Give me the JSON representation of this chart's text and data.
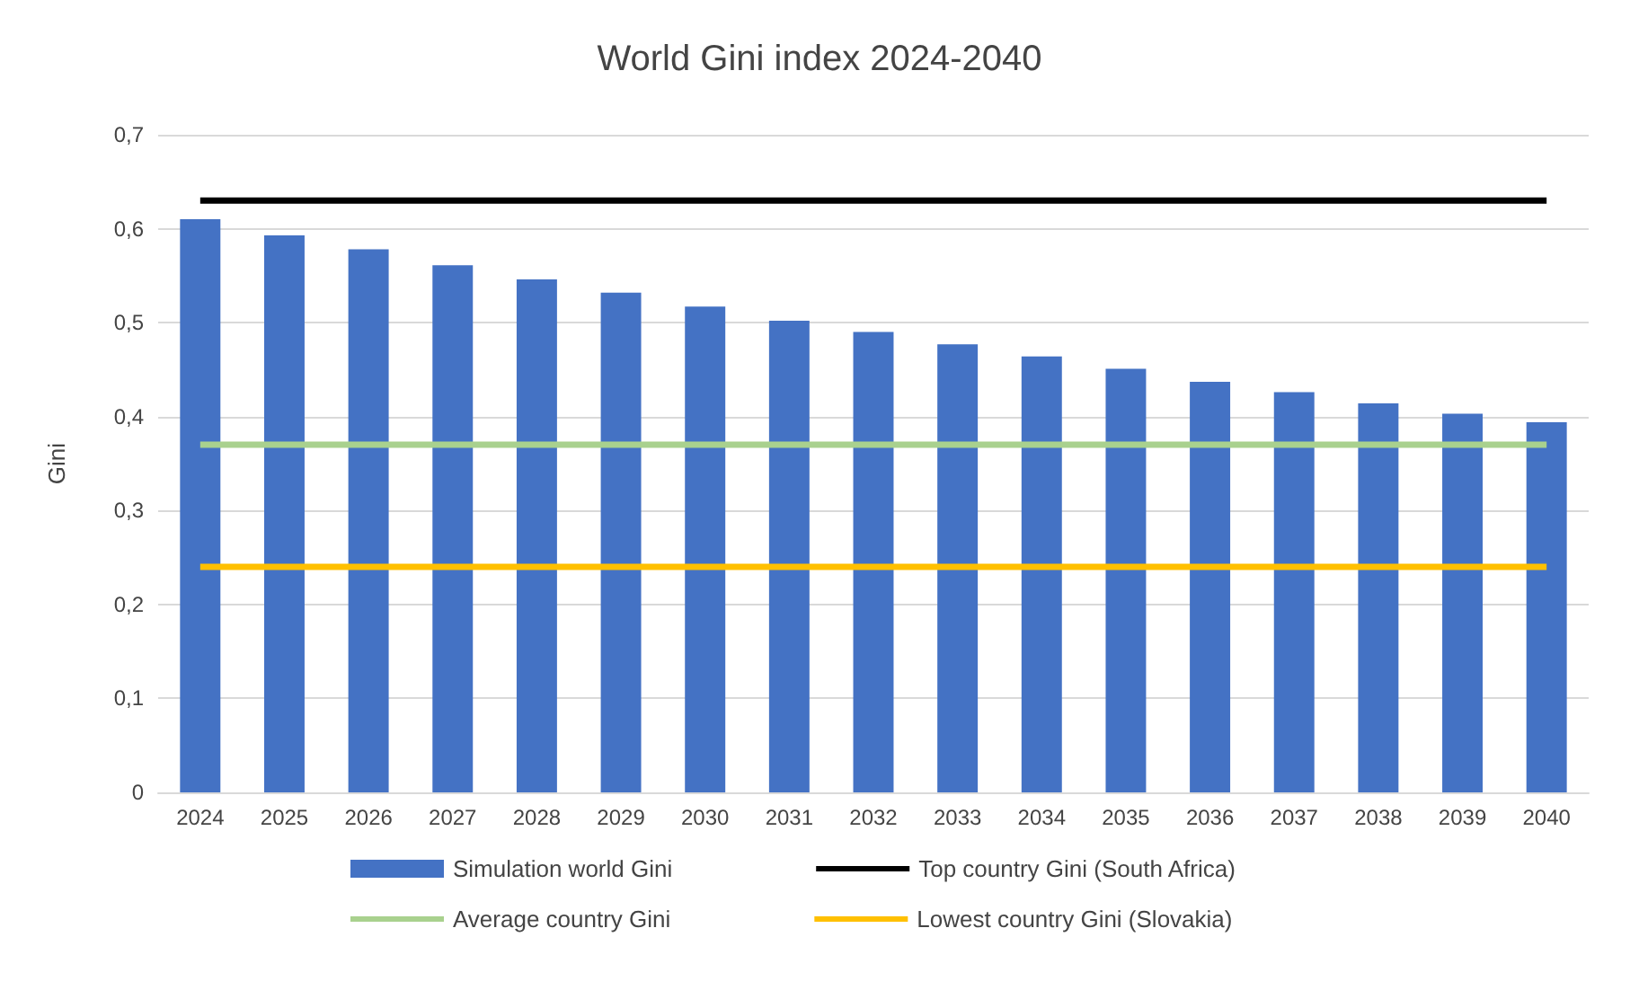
{
  "chart_data": {
    "type": "bar",
    "title": "World Gini index 2024-2040",
    "ylabel": "Gini",
    "categories": [
      "2024",
      "2025",
      "2026",
      "2027",
      "2028",
      "2029",
      "2030",
      "2031",
      "2032",
      "2033",
      "2034",
      "2035",
      "2036",
      "2037",
      "2038",
      "2039",
      "2040"
    ],
    "series": [
      {
        "name": "Simulation world Gini",
        "color": "#4472c4",
        "values": [
          0.61,
          0.593,
          0.578,
          0.561,
          0.546,
          0.532,
          0.517,
          0.502,
          0.49,
          0.477,
          0.464,
          0.451,
          0.437,
          0.426,
          0.414,
          0.403,
          0.394
        ]
      },
      {
        "name": "Top country Gini (South Africa)",
        "type": "line",
        "color": "#000000",
        "values": [
          0.63,
          0.63,
          0.63,
          0.63,
          0.63,
          0.63,
          0.63,
          0.63,
          0.63,
          0.63,
          0.63,
          0.63,
          0.63,
          0.63,
          0.63,
          0.63,
          0.63
        ]
      },
      {
        "name": "Average country Gini",
        "type": "line",
        "color": "#a9d18e",
        "values": [
          0.37,
          0.37,
          0.37,
          0.37,
          0.37,
          0.37,
          0.37,
          0.37,
          0.37,
          0.37,
          0.37,
          0.37,
          0.37,
          0.37,
          0.37,
          0.37,
          0.37
        ]
      },
      {
        "name": "Lowest country Gini (Slovakia)",
        "type": "line",
        "color": "#ffc000",
        "values": [
          0.24,
          0.24,
          0.24,
          0.24,
          0.24,
          0.24,
          0.24,
          0.24,
          0.24,
          0.24,
          0.24,
          0.24,
          0.24,
          0.24,
          0.24,
          0.24,
          0.24
        ]
      }
    ],
    "ylim": [
      0,
      0.7
    ],
    "yticks": [
      0,
      {
        "value": 0.1,
        "label": "0,1"
      },
      {
        "value": 0.2,
        "label": "0,2"
      },
      {
        "value": 0.3,
        "label": "0,3"
      },
      {
        "value": 0.4,
        "label": "0,4"
      },
      {
        "value": 0.5,
        "label": "0,5"
      },
      {
        "value": 0.6,
        "label": "0,6"
      },
      {
        "value": 0.7,
        "label": "0,7"
      }
    ],
    "grid": "y",
    "legend": "bottom",
    "marker": "none",
    "line_style": "solid"
  }
}
